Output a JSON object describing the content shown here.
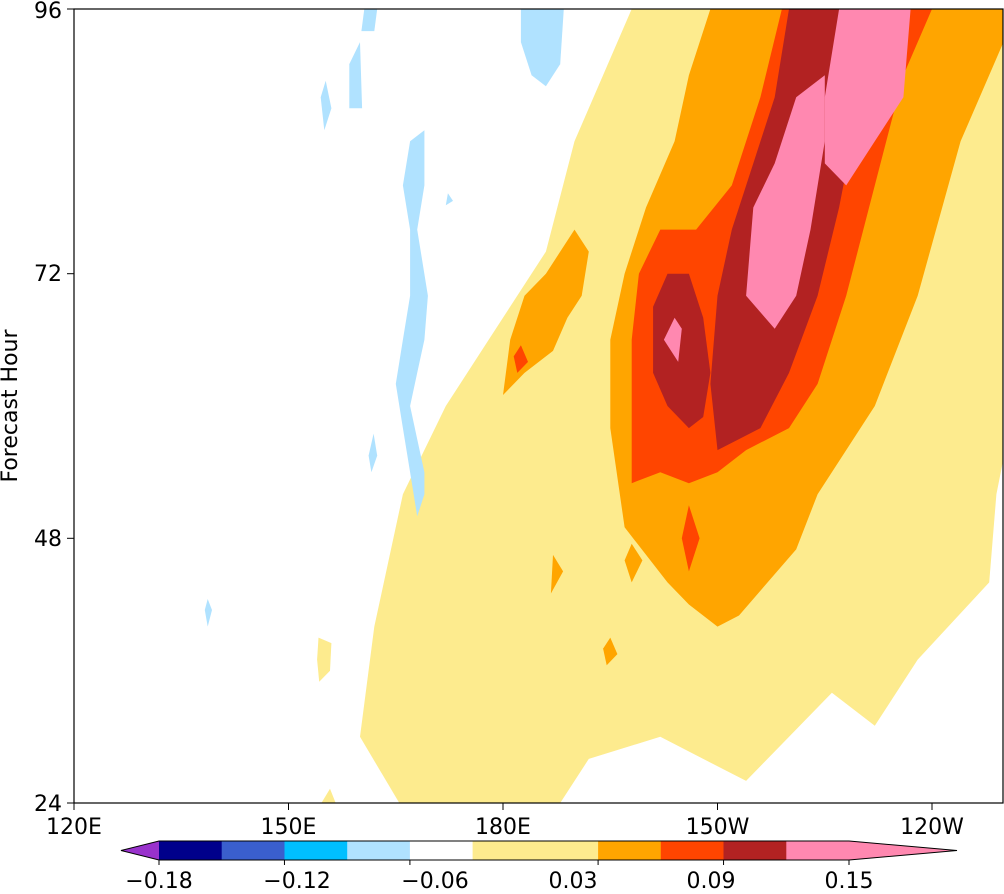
{
  "chart_data": {
    "type": "heatmap",
    "subtype": "filled-contour (Hovmöller)",
    "title": "",
    "xlabel": "",
    "ylabel": "Forecast Hour",
    "x_ticks": [
      "120E",
      "150E",
      "180E",
      "150W",
      "120W"
    ],
    "y_ticks": [
      "24",
      "48",
      "72",
      "96"
    ],
    "ylim": [
      24,
      96
    ],
    "grid": false,
    "colorbar": {
      "orientation": "horizontal",
      "extend": "both",
      "levels": [
        -0.18,
        -0.15,
        -0.12,
        -0.09,
        -0.06,
        -0.03,
        0.03,
        0.06,
        0.09,
        0.12,
        0.15
      ],
      "tick_labels": [
        "−0.18",
        "−0.12",
        "−0.06",
        "0.03",
        "0.09",
        "0.15"
      ],
      "colors": [
        "#9932cc",
        "#00008b",
        "#3a5fcd",
        "#00bfff",
        "#b0e2ff",
        "#ffffff",
        "#fdeb8e",
        "#ffa500",
        "#ff4500",
        "#b22222",
        "#ff88b0",
        "#ff88b0"
      ]
    },
    "regions": [
      {
        "level": 0.03,
        "color": "#fdeb8e",
        "shape": "broad diagonal band rising from about 175E at 24h to 115W at 96h",
        "polygon": [
          [
            165.5,
            24
          ],
          [
            188,
            24
          ],
          [
            192,
            28
          ],
          [
            202,
            30
          ],
          [
            208,
            28
          ],
          [
            214,
            26
          ],
          [
            226,
            34
          ],
          [
            232,
            31
          ],
          [
            238,
            37
          ],
          [
            248,
            44
          ],
          [
            249,
            52
          ],
          [
            253,
            65
          ],
          [
            256,
            80
          ],
          [
            256,
            96
          ],
          [
            198,
            96
          ],
          [
            190,
            84
          ],
          [
            186,
            74
          ],
          [
            178,
            66
          ],
          [
            172,
            60
          ],
          [
            166,
            52
          ],
          [
            162,
            40
          ],
          [
            160,
            30
          ]
        ]
      },
      {
        "level": 0.03,
        "color": "#fdeb8e",
        "shape": "isolated cell",
        "polygon": [
          [
            154.3,
            35
          ],
          [
            155.8,
            36
          ],
          [
            156,
            38.5
          ],
          [
            154.2,
            39
          ],
          [
            154.0,
            37
          ]
        ]
      },
      {
        "level": 0.03,
        "color": "#fdeb8e",
        "shape": "isolated cell",
        "polygon": [
          [
            154.6,
            24
          ],
          [
            156.6,
            24
          ],
          [
            155.8,
            25.3
          ]
        ]
      },
      {
        "level": 0.06,
        "color": "#ffa500",
        "shape": "main warm core",
        "polygon": [
          [
            197,
            49
          ],
          [
            203,
            44
          ],
          [
            206,
            42
          ],
          [
            210,
            40
          ],
          [
            213,
            41
          ],
          [
            217,
            44
          ],
          [
            221,
            47
          ],
          [
            224,
            52
          ],
          [
            228,
            56
          ],
          [
            232,
            60
          ],
          [
            238,
            70
          ],
          [
            244,
            84
          ],
          [
            252,
            96
          ],
          [
            209,
            96
          ],
          [
            206,
            90
          ],
          [
            204,
            84
          ],
          [
            200,
            78
          ],
          [
            197,
            72
          ],
          [
            195,
            66
          ],
          [
            195,
            58
          ]
        ]
      },
      {
        "level": 0.06,
        "color": "#ffa500",
        "shape": "western lobe",
        "polygon": [
          [
            180,
            61
          ],
          [
            183,
            63
          ],
          [
            187,
            65
          ],
          [
            189,
            68
          ],
          [
            191,
            70
          ],
          [
            192,
            74
          ],
          [
            190,
            76
          ],
          [
            186,
            72
          ],
          [
            183,
            70
          ],
          [
            181,
            66
          ]
        ]
      },
      {
        "level": 0.06,
        "color": "#ffa500",
        "shape": "small cell",
        "polygon": [
          [
            186.7,
            43
          ],
          [
            188.4,
            45
          ],
          [
            187,
            46.5
          ]
        ]
      },
      {
        "level": 0.06,
        "color": "#ffa500",
        "shape": "small cell",
        "polygon": [
          [
            198,
            44
          ],
          [
            199.5,
            46
          ],
          [
            198,
            47.5
          ],
          [
            197,
            46
          ]
        ]
      },
      {
        "level": 0.06,
        "color": "#ffa500",
        "shape": "small cell",
        "polygon": [
          [
            194.5,
            36.5
          ],
          [
            196,
            37.5
          ],
          [
            195,
            39
          ],
          [
            194,
            38
          ]
        ]
      },
      {
        "level": 0.09,
        "color": "#ff4500",
        "shape": "band",
        "polygon": [
          [
            198,
            53
          ],
          [
            202,
            54
          ],
          [
            206,
            53
          ],
          [
            210,
            54
          ],
          [
            214,
            56
          ],
          [
            220,
            58
          ],
          [
            224,
            62
          ],
          [
            228,
            70
          ],
          [
            232,
            80
          ],
          [
            236,
            90
          ],
          [
            240,
            96
          ],
          [
            219,
            96
          ],
          [
            216,
            88
          ],
          [
            212,
            80
          ],
          [
            207,
            76
          ],
          [
            202,
            76
          ],
          [
            199,
            72
          ],
          [
            198,
            66
          ]
        ]
      },
      {
        "level": 0.09,
        "color": "#ff4500",
        "shape": "small cell",
        "polygon": [
          [
            182,
            63
          ],
          [
            183.5,
            64
          ],
          [
            182.5,
            65.5
          ],
          [
            181.5,
            64.5
          ]
        ]
      },
      {
        "level": 0.09,
        "color": "#ff4500",
        "shape": "small cell",
        "polygon": [
          [
            206,
            45
          ],
          [
            207.5,
            48
          ],
          [
            206,
            51
          ],
          [
            205,
            48
          ]
        ]
      },
      {
        "level": 0.12,
        "color": "#b22222",
        "shape": "cell",
        "polygon": [
          [
            201,
            63
          ],
          [
            203,
            60
          ],
          [
            206,
            58
          ],
          [
            208,
            59
          ],
          [
            209,
            63
          ],
          [
            208,
            68
          ],
          [
            206,
            72
          ],
          [
            203,
            72
          ],
          [
            201,
            69
          ]
        ]
      },
      {
        "level": 0.12,
        "color": "#b22222",
        "shape": "northern band",
        "polygon": [
          [
            210,
            56
          ],
          [
            213,
            57
          ],
          [
            216,
            58
          ],
          [
            220,
            63
          ],
          [
            224,
            70
          ],
          [
            227,
            78
          ],
          [
            230,
            88
          ],
          [
            231,
            96
          ],
          [
            220,
            96
          ],
          [
            218,
            88
          ],
          [
            215,
            82
          ],
          [
            212,
            76
          ],
          [
            210,
            70
          ],
          [
            209,
            62
          ]
        ]
      },
      {
        "level": 0.15,
        "color": "#ff88b0",
        "shape": "cell",
        "polygon": [
          [
            202.5,
            66
          ],
          [
            204.5,
            64
          ],
          [
            205,
            67
          ],
          [
            204,
            68
          ]
        ]
      },
      {
        "level": 0.15,
        "color": "#ff88b0",
        "shape": "cell",
        "polygon": [
          [
            214,
            70
          ],
          [
            218,
            67
          ],
          [
            221,
            70
          ],
          [
            223,
            76
          ],
          [
            225,
            84
          ],
          [
            225,
            90
          ],
          [
            221,
            88
          ],
          [
            218,
            82
          ],
          [
            215,
            78
          ]
        ]
      },
      {
        "level": 0.15,
        "color": "#ff88b0",
        "shape": "northern cell",
        "polygon": [
          [
            225,
            82
          ],
          [
            228,
            80
          ],
          [
            232,
            84
          ],
          [
            236,
            88
          ],
          [
            237,
            96
          ],
          [
            227,
            96
          ],
          [
            225,
            88
          ]
        ]
      },
      {
        "level": -0.03,
        "color": "#b0e2ff",
        "shape": "elongated patch",
        "polygon": [
          [
            168,
            50
          ],
          [
            169,
            52
          ],
          [
            169,
            54
          ],
          [
            168,
            57
          ],
          [
            167,
            60
          ],
          [
            168,
            63
          ],
          [
            169,
            66
          ],
          [
            169.5,
            70
          ],
          [
            168,
            76
          ],
          [
            169,
            80
          ],
          [
            169,
            85
          ],
          [
            167,
            84
          ],
          [
            166,
            80
          ],
          [
            167,
            76
          ],
          [
            167,
            70
          ],
          [
            166,
            66
          ],
          [
            165,
            62
          ],
          [
            166,
            58
          ],
          [
            167,
            54
          ]
        ]
      },
      {
        "level": -0.03,
        "color": "#b0e2ff",
        "shape": "northern patch",
        "polygon": [
          [
            182.5,
            96
          ],
          [
            188.5,
            96
          ],
          [
            188,
            91
          ],
          [
            186,
            89
          ],
          [
            184,
            90
          ],
          [
            182.5,
            93
          ]
        ]
      },
      {
        "level": -0.03,
        "color": "#b0e2ff",
        "shape": "patch",
        "polygon": [
          [
            160.2,
            94
          ],
          [
            162,
            94
          ],
          [
            162.4,
            96
          ],
          [
            160.6,
            96
          ]
        ]
      },
      {
        "level": -0.03,
        "color": "#b0e2ff",
        "shape": "patch",
        "polygon": [
          [
            158.5,
            87
          ],
          [
            160.3,
            87
          ],
          [
            160,
            93
          ],
          [
            158.5,
            91
          ]
        ]
      },
      {
        "level": -0.03,
        "color": "#b0e2ff",
        "shape": "patch",
        "polygon": [
          [
            155,
            85
          ],
          [
            156,
            87
          ],
          [
            155.2,
            89.5
          ],
          [
            154.5,
            88
          ]
        ]
      },
      {
        "level": -0.03,
        "color": "#b0e2ff",
        "shape": "patch",
        "polygon": [
          [
            161.6,
            54
          ],
          [
            162.4,
            55.5
          ],
          [
            161.9,
            57.5
          ],
          [
            161.2,
            55.5
          ]
        ]
      },
      {
        "level": -0.03,
        "color": "#b0e2ff",
        "shape": "patch",
        "polygon": [
          [
            138.7,
            40
          ],
          [
            139.3,
            41.5
          ],
          [
            138.7,
            42.5
          ],
          [
            138.3,
            41.5
          ]
        ]
      },
      {
        "level": -0.03,
        "color": "#b0e2ff",
        "shape": "patch",
        "polygon": [
          [
            172,
            78.2
          ],
          [
            173,
            78.6
          ],
          [
            172.3,
            79.3
          ]
        ]
      }
    ]
  }
}
